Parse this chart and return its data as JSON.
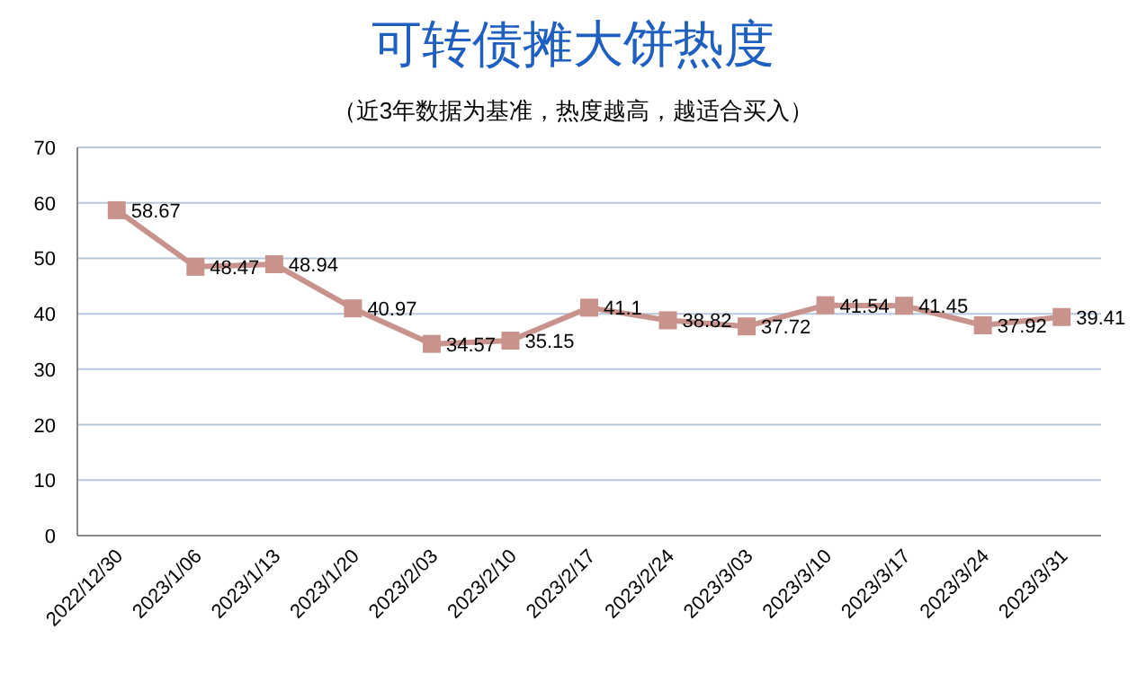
{
  "chart_data": {
    "type": "line",
    "title": "可转债摊大饼热度",
    "subtitle": "（近3年数据为基准，热度越高，越适合买入）",
    "categories": [
      "2022/12/30",
      "2023/1/06",
      "2023/1/13",
      "2023/1/20",
      "2023/2/03",
      "2023/2/10",
      "2023/2/17",
      "2023/2/24",
      "2023/3/03",
      "2023/3/10",
      "2023/3/17",
      "2023/3/24",
      "2023/3/31"
    ],
    "series": [
      {
        "color": "#c9938d",
        "values": [
          58.67,
          48.47,
          48.94,
          40.97,
          34.57,
          35.15,
          41.1,
          38.82,
          37.72,
          41.54,
          41.45,
          37.92,
          39.41
        ]
      }
    ],
    "ylim": [
      0,
      70
    ],
    "yticks": [
      0,
      10,
      20,
      30,
      40,
      50,
      60,
      70
    ],
    "grid": "y",
    "marker": "square",
    "line_style": "solid",
    "data_labels": true
  }
}
